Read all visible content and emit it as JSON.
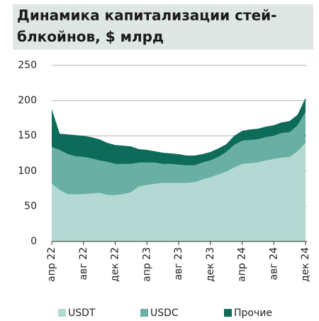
{
  "chart_data": {
    "type": "stacked-area",
    "title": [
      "Динамика капитализации стей-",
      "блкойнов, $ млрд"
    ],
    "categories": [
      "апр 22",
      null,
      null,
      null,
      "авг 22",
      null,
      null,
      null,
      "дек 22",
      null,
      null,
      null,
      "апр 23",
      null,
      null,
      null,
      "авг 23",
      null,
      null,
      null,
      "дек 23",
      null,
      null,
      null,
      "апр 24",
      null,
      null,
      null,
      "авг 24",
      null,
      null,
      null,
      "дек 24"
    ],
    "series": [
      {
        "name": "USDT",
        "color": "#b3d9d2",
        "values": [
          82,
          73,
          67,
          67,
          67,
          68,
          69,
          66,
          66,
          67,
          70,
          78,
          80,
          82,
          83,
          83,
          83,
          83,
          84,
          88,
          91,
          95,
          99,
          105,
          110,
          111,
          112,
          115,
          117,
          119,
          120,
          128,
          140
        ]
      },
      {
        "name": "USDC",
        "color": "#6aafa3",
        "values": [
          52,
          57,
          57,
          54,
          53,
          50,
          46,
          47,
          44,
          43,
          40,
          34,
          32,
          30,
          27,
          27,
          26,
          25,
          24,
          24,
          24,
          25,
          28,
          32,
          33,
          33,
          33,
          33,
          33,
          35,
          35,
          37,
          44
        ]
      },
      {
        "name": "Прочие",
        "color": "#0d6b5a",
        "values": [
          54,
          23,
          28,
          30,
          30,
          30,
          30,
          27,
          27,
          26,
          25,
          19,
          18,
          16,
          16,
          15,
          15,
          14,
          14,
          12,
          12,
          12,
          11,
          13,
          14,
          15,
          15,
          15,
          15,
          15,
          16,
          15,
          20
        ]
      }
    ],
    "ylim": [
      0,
      250
    ],
    "yticks": [
      0,
      50,
      100,
      150,
      200,
      250
    ],
    "grid": true
  }
}
